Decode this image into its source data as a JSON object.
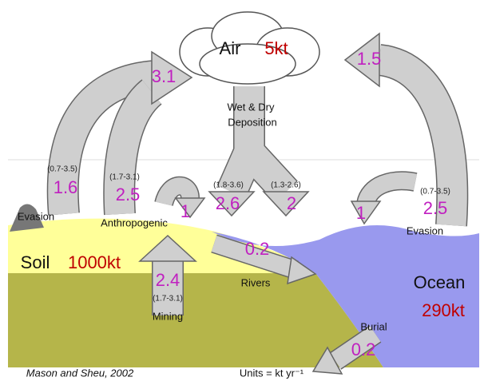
{
  "air": {
    "name": "Air",
    "amount": "5kt"
  },
  "soil": {
    "name": "Soil",
    "amount": "1000kt"
  },
  "ocean": {
    "name": "Ocean",
    "amount": "290kt"
  },
  "fluxes": {
    "land_to_air": {
      "value": 3.1
    },
    "ocean_to_air": {
      "value": 1.5
    },
    "deposition": {
      "label_line1": "Wet & Dry",
      "label_line2": "Deposition"
    },
    "land_evasion": {
      "range": "(0.7-3.5)",
      "value": 1.6,
      "label": "Evasion"
    },
    "anthropogenic": {
      "range": "(1.7-3.1)",
      "value": 2.5,
      "label": "Anthropogenic"
    },
    "deposition_land": {
      "range": "(1.8-3.6)",
      "value": 2.6
    },
    "deposition_ocean": {
      "range": "(1.3-2.6)",
      "value": 2
    },
    "ocean_evasion": {
      "range": "(0.7-3.5)",
      "value": 2.5,
      "label": "Evasion"
    },
    "anthro_to_soil": {
      "value": 1
    },
    "air_to_ocean": {
      "value": 1
    },
    "rivers": {
      "value": 0.2,
      "label": "Rivers"
    },
    "mining": {
      "value": 2.4,
      "range": "(1.7-3.1)",
      "label": "Mining"
    },
    "burial": {
      "value": 0.2,
      "label": "Burial"
    }
  },
  "footer": {
    "source": "Mason and Sheu, 2002",
    "units": "Units = kt yr⁻¹"
  }
}
